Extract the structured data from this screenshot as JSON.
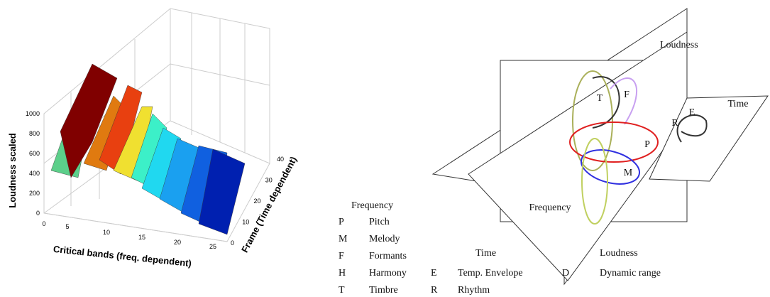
{
  "surface_plot": {
    "zlabel": "Loudness scaled",
    "xlabel": "Critical bands (freq. dependent)",
    "ylabel": "Frame (Time dependent)",
    "zticks": [
      "0",
      "200",
      "400",
      "600",
      "800",
      "1000"
    ],
    "xticks": [
      "0",
      "5",
      "10",
      "15",
      "20",
      "25"
    ],
    "yticks": [
      "0",
      "10",
      "20",
      "30",
      "40"
    ]
  },
  "diagram": {
    "planes": {
      "loudness": "Loudness",
      "time": "Time",
      "frequency": "Frequency"
    },
    "loops": {
      "timbre": "T",
      "formants": "F",
      "pitch": "P",
      "melody": "M",
      "rhythm": "R",
      "envelope": "E"
    }
  },
  "legend": {
    "frequency": {
      "heading": "Frequency",
      "rows": [
        [
          "P",
          "Pitch"
        ],
        [
          "M",
          "Melody"
        ],
        [
          "F",
          "Formants"
        ],
        [
          "H",
          "Harmony"
        ],
        [
          "T",
          "Timbre"
        ]
      ]
    },
    "time": {
      "heading": "Time",
      "rows": [
        [
          "E",
          "Temp. Envelope"
        ],
        [
          "R",
          "Rhythm"
        ]
      ]
    },
    "loudness": {
      "heading": "Loudness",
      "rows": [
        [
          "D",
          "Dynamic range"
        ]
      ]
    }
  }
}
